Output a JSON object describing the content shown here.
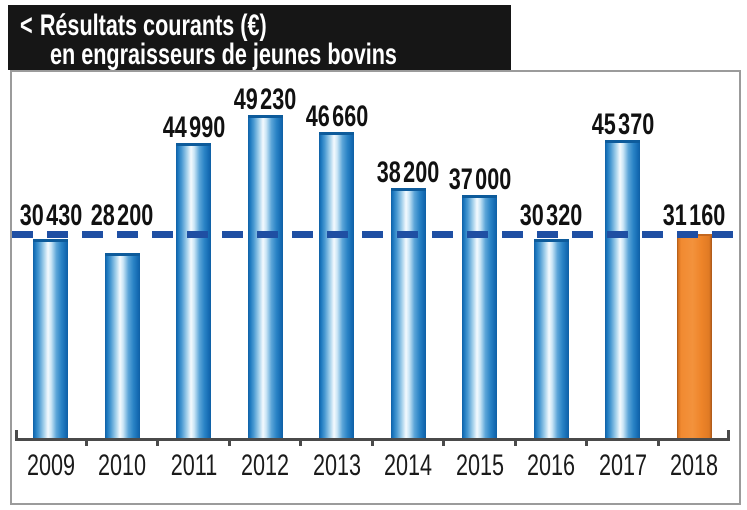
{
  "title": {
    "marker": "<",
    "line1": "Résultats courants (€)",
    "line2": "en engraisseurs de jeunes bovins"
  },
  "colors": {
    "title_bg": "#161616",
    "title_text": "#ffffff",
    "bar_blue_edge": "#0F5FA4",
    "bar_blue_light": "#F4FAFE",
    "bar_highlight_orange": "#F18A31",
    "dash": "#1F4FA3",
    "axis": "#4a4a4a",
    "box_border": "#9b9b9b",
    "label_text": "#111111"
  },
  "chart_data": {
    "type": "bar",
    "title": "Résultats courants (€) en engraisseurs de jeunes bovins",
    "unit": "€",
    "categories": [
      "2009",
      "2010",
      "2011",
      "2012",
      "2013",
      "2014",
      "2015",
      "2016",
      "2017",
      "2018"
    ],
    "values": [
      30430,
      28200,
      44990,
      49230,
      46660,
      38200,
      37000,
      30320,
      45370,
      31160
    ],
    "value_labels": [
      "30 430",
      "28 200",
      "44 990",
      "49 230",
      "46 660",
      "38 200",
      "37 000",
      "30 320",
      "45 370",
      "31 160"
    ],
    "highlight_index": 9,
    "reference_line": {
      "value": 31160,
      "style": "dashed"
    },
    "ylim": [
      0,
      49230
    ],
    "xlabel": "",
    "ylabel": "",
    "grid": false,
    "legend": false
  }
}
